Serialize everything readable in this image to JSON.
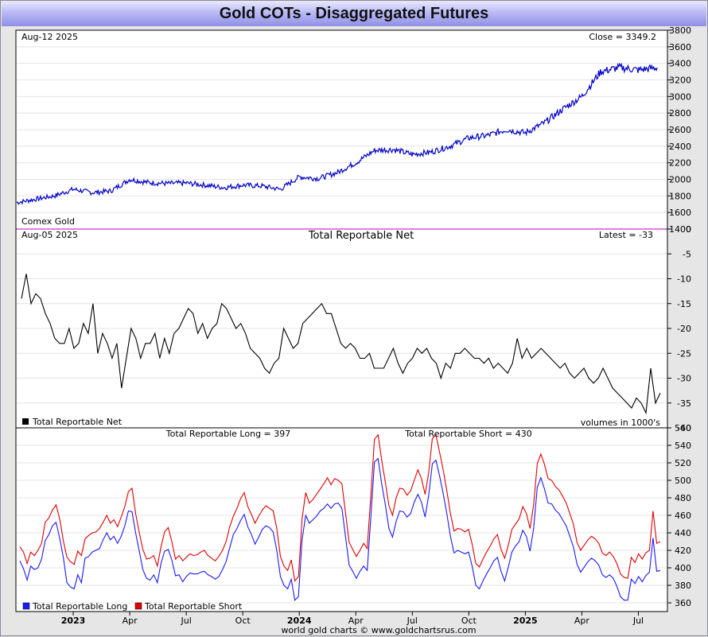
{
  "title": "Gold COTs - Disaggregated Futures",
  "footer": "world gold charts © www.goldchartsrus.com",
  "chart_data": [
    {
      "type": "line",
      "top_left_label": "Aug-12  2025",
      "top_right_label": "Close = 3349.2",
      "bottom_left_label": "Comex Gold",
      "ylim": [
        1400,
        3800
      ],
      "yticks": [
        "1400",
        "1600",
        "1800",
        "2000",
        "2200",
        "2400",
        "2600",
        "2800",
        "3000",
        "3200",
        "3400",
        "3600",
        "3800"
      ],
      "color": "#0000c8",
      "x": [
        "2022-10",
        "2022-11",
        "2022-12",
        "2023-01",
        "2023-02",
        "2023-03",
        "2023-04",
        "2023-05",
        "2023-06",
        "2023-07",
        "2023-08",
        "2023-09",
        "2023-10",
        "2023-11",
        "2023-12",
        "2024-01",
        "2024-02",
        "2024-03",
        "2024-04",
        "2024-05",
        "2024-06",
        "2024-07",
        "2024-08",
        "2024-09",
        "2024-10",
        "2024-11",
        "2024-12",
        "2025-01",
        "2025-02",
        "2025-03",
        "2025-04",
        "2025-05",
        "2025-06",
        "2025-07",
        "2025-08"
      ],
      "y": [
        1720,
        1760,
        1800,
        1880,
        1840,
        1860,
        2000,
        1960,
        1950,
        1955,
        1930,
        1900,
        1930,
        1920,
        1880,
        2030,
        2010,
        2080,
        2200,
        2350,
        2360,
        2300,
        2330,
        2400,
        2500,
        2530,
        2600,
        2560,
        2680,
        2850,
        3000,
        3300,
        3350,
        3320,
        3349
      ]
    },
    {
      "type": "line",
      "top_left_label": "Aug-05  2025",
      "title": "Total Reportable Net",
      "top_right_label": "Latest = -33",
      "legend": "Total Reportable Net",
      "note": "volumes in 1000's",
      "ylim": [
        -40,
        0
      ],
      "yticks": [
        "0",
        "-5",
        "-10",
        "-15",
        "-20",
        "-25",
        "-30",
        "-35",
        "-40"
      ],
      "series": [
        {
          "name": "Total Reportable Net",
          "color": "#000000",
          "values": [
            -14,
            -9,
            -15,
            -13,
            -14,
            -17,
            -19,
            -22,
            -23,
            -23,
            -20,
            -24,
            -23,
            -19,
            -21,
            -15,
            -25,
            -21,
            -23,
            -26,
            -23,
            -32,
            -26,
            -20,
            -22,
            -26,
            -23,
            -23,
            -21,
            -26,
            -22,
            -25,
            -21,
            -20,
            -18,
            -16,
            -17,
            -21,
            -19,
            -22,
            -20,
            -19,
            -15,
            -16,
            -18,
            -20,
            -19,
            -21,
            -24,
            -25,
            -26,
            -28,
            -29,
            -27,
            -26,
            -20,
            -22,
            -24,
            -23,
            -19,
            -18,
            -17,
            -16,
            -15,
            -17,
            -17,
            -20,
            -23,
            -24,
            -23,
            -24,
            -26,
            -26,
            -25,
            -28,
            -28,
            -28,
            -26,
            -24,
            -27,
            -29,
            -27,
            -26,
            -24,
            -25,
            -24,
            -26,
            -27,
            -30,
            -27,
            -28,
            -25,
            -25,
            -24,
            -25,
            -26,
            -26,
            -27,
            -26,
            -28,
            -27,
            -28,
            -29,
            -27,
            -22,
            -26,
            -24,
            -26,
            -25,
            -24,
            -25,
            -26,
            -27,
            -28,
            -27,
            -29,
            -30,
            -29,
            -28,
            -30,
            -31,
            -30,
            -28,
            -30,
            -32,
            -33,
            -34,
            -35,
            -36,
            -34,
            -35,
            -37,
            -28,
            -35,
            -33
          ]
        }
      ]
    },
    {
      "type": "line",
      "long_label": "Total Reportable Long = 397",
      "short_label": "Total Reportable Short = 430",
      "ylim": [
        350,
        560
      ],
      "yticks": [
        "360",
        "380",
        "400",
        "420",
        "440",
        "460",
        "480",
        "500",
        "520",
        "540",
        "560"
      ],
      "xticks": [
        "2023",
        "Apr",
        "Jul",
        "Oct",
        "2024",
        "Apr",
        "Jul",
        "Oct",
        "2025",
        "Apr",
        "Jul"
      ],
      "xticks_bold": [
        "2023",
        "2024",
        "2025"
      ],
      "series": [
        {
          "name": "Total Reportable Long",
          "color": "#1a1aff",
          "values": [
            408,
            399,
            386,
            402,
            398,
            400,
            410,
            431,
            438,
            448,
            452,
            434,
            412,
            383,
            378,
            376,
            392,
            383,
            411,
            413,
            418,
            420,
            422,
            432,
            440,
            432,
            436,
            428,
            436,
            448,
            465,
            464,
            440,
            419,
            398,
            388,
            386,
            392,
            383,
            405,
            419,
            421,
            409,
            391,
            392,
            384,
            390,
            394,
            393,
            393,
            395,
            396,
            392,
            390,
            387,
            390,
            398,
            407,
            423,
            438,
            445,
            454,
            461,
            447,
            438,
            427,
            435,
            444,
            448,
            446,
            441,
            420,
            390,
            380,
            376,
            387,
            363,
            367,
            432,
            460,
            451,
            455,
            459,
            465,
            468,
            473,
            468,
            473,
            474,
            468,
            436,
            403,
            396,
            388,
            396,
            402,
            397,
            458,
            521,
            525,
            496,
            472,
            445,
            435,
            453,
            465,
            464,
            458,
            462,
            475,
            484,
            475,
            458,
            483,
            519,
            523,
            505,
            485,
            462,
            436,
            417,
            420,
            418,
            416,
            418,
            402,
            380,
            376,
            385,
            393,
            400,
            408,
            412,
            396,
            385,
            401,
            418,
            425,
            430,
            443,
            436,
            419,
            445,
            492,
            503,
            490,
            474,
            473,
            466,
            462,
            455,
            448,
            436,
            424,
            404,
            395,
            401,
            407,
            411,
            408,
            403,
            392,
            389,
            392,
            388,
            379,
            367,
            363,
            363,
            387,
            382,
            390,
            384,
            391,
            395,
            434,
            396,
            397
          ]
        },
        {
          "name": "Total Reportable Short",
          "color": "#e00000",
          "values": [
            424,
            418,
            405,
            418,
            414,
            420,
            428,
            452,
            457,
            466,
            472,
            456,
            431,
            412,
            407,
            404,
            419,
            414,
            433,
            437,
            440,
            441,
            445,
            452,
            460,
            451,
            455,
            447,
            458,
            470,
            487,
            491,
            462,
            440,
            421,
            410,
            411,
            414,
            402,
            424,
            441,
            446,
            430,
            410,
            414,
            408,
            412,
            416,
            414,
            415,
            418,
            420,
            414,
            411,
            408,
            413,
            420,
            430,
            447,
            459,
            468,
            479,
            486,
            470,
            461,
            451,
            459,
            466,
            471,
            468,
            465,
            445,
            413,
            402,
            397,
            409,
            385,
            390,
            456,
            486,
            474,
            478,
            484,
            490,
            496,
            503,
            495,
            502,
            500,
            496,
            463,
            429,
            421,
            413,
            420,
            428,
            422,
            483,
            547,
            552,
            523,
            498,
            471,
            460,
            480,
            491,
            490,
            483,
            488,
            500,
            512,
            502,
            484,
            509,
            548,
            552,
            532,
            512,
            488,
            462,
            442,
            445,
            444,
            441,
            444,
            427,
            405,
            401,
            410,
            418,
            425,
            433,
            438,
            421,
            411,
            426,
            444,
            450,
            456,
            470,
            462,
            445,
            472,
            519,
            530,
            518,
            502,
            500,
            493,
            489,
            482,
            474,
            462,
            450,
            429,
            420,
            426,
            432,
            436,
            433,
            428,
            417,
            414,
            418,
            413,
            405,
            393,
            389,
            388,
            412,
            406,
            416,
            410,
            417,
            420,
            465,
            428,
            430
          ]
        }
      ]
    }
  ]
}
